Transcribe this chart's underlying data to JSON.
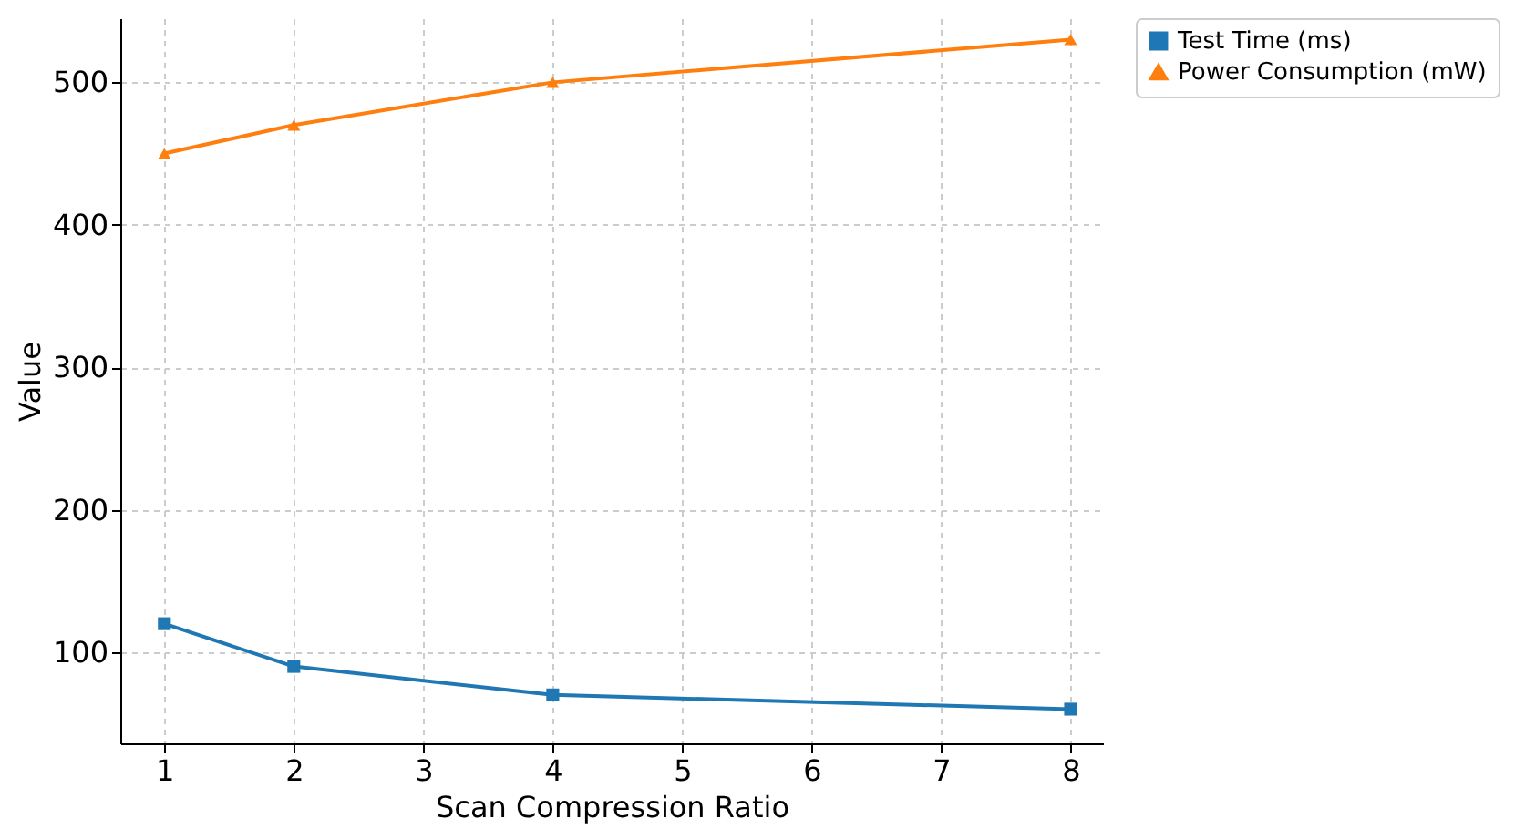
{
  "chart_data": {
    "type": "line",
    "xlabel": "Scan Compression Ratio",
    "ylabel": "Value",
    "x": [
      1,
      2,
      4,
      8
    ],
    "series": [
      {
        "name": "Test Time (ms)",
        "color": "#1f77b4",
        "marker": "square",
        "values": [
          120,
          90,
          70,
          60
        ]
      },
      {
        "name": "Power Consumption (mW)",
        "color": "#ff7f0e",
        "marker": "triangle",
        "values": [
          450,
          470,
          500,
          530
        ]
      }
    ],
    "xlim": [
      0.66,
      8.25
    ],
    "xticks": [
      1,
      2,
      3,
      4,
      5,
      6,
      7,
      8
    ],
    "ylim": [
      36,
      545
    ],
    "yticks": [
      100,
      200,
      300,
      400,
      500
    ],
    "grid": true,
    "legend": "right",
    "line_style": "solid"
  }
}
